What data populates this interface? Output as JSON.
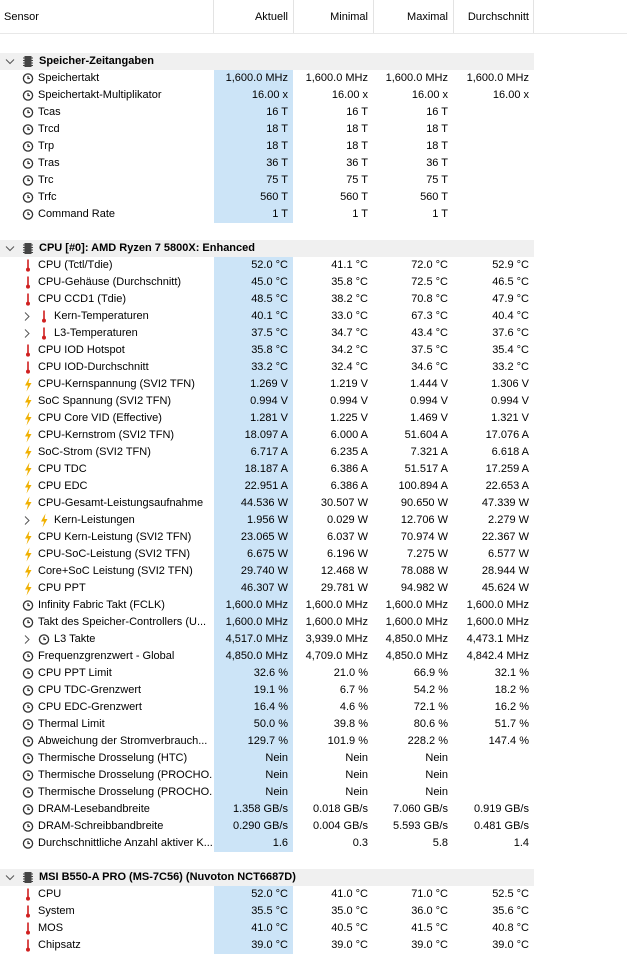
{
  "columns": {
    "sensor": "Sensor",
    "current": "Aktuell",
    "min": "Minimal",
    "max": "Maximal",
    "avg": "Durchschnitt"
  },
  "rows": [
    {
      "type": "spacer"
    },
    {
      "type": "section",
      "label": "Speicher-Zeitangaben",
      "icon": "memory-chip-icon",
      "expand": "chevron-down-icon"
    },
    {
      "type": "data",
      "icon": "clock-icon",
      "label": "Speichertakt",
      "cur": "1,600.0 MHz",
      "min": "1,600.0 MHz",
      "max": "1,600.0 MHz",
      "avg": "1,600.0 MHz"
    },
    {
      "type": "data",
      "icon": "clock-icon",
      "label": "Speichertakt-Multiplikator",
      "cur": "16.00 x",
      "min": "16.00 x",
      "max": "16.00 x",
      "avg": "16.00 x"
    },
    {
      "type": "data",
      "icon": "clock-icon",
      "label": "Tcas",
      "cur": "16 T",
      "min": "16 T",
      "max": "16 T",
      "avg": ""
    },
    {
      "type": "data",
      "icon": "clock-icon",
      "label": "Trcd",
      "cur": "18 T",
      "min": "18 T",
      "max": "18 T",
      "avg": ""
    },
    {
      "type": "data",
      "icon": "clock-icon",
      "label": "Trp",
      "cur": "18 T",
      "min": "18 T",
      "max": "18 T",
      "avg": ""
    },
    {
      "type": "data",
      "icon": "clock-icon",
      "label": "Tras",
      "cur": "36 T",
      "min": "36 T",
      "max": "36 T",
      "avg": ""
    },
    {
      "type": "data",
      "icon": "clock-icon",
      "label": "Trc",
      "cur": "75 T",
      "min": "75 T",
      "max": "75 T",
      "avg": ""
    },
    {
      "type": "data",
      "icon": "clock-icon",
      "label": "Trfc",
      "cur": "560 T",
      "min": "560 T",
      "max": "560 T",
      "avg": ""
    },
    {
      "type": "data",
      "icon": "clock-icon",
      "label": "Command Rate",
      "cur": "1 T",
      "min": "1 T",
      "max": "1 T",
      "avg": ""
    },
    {
      "type": "spacer"
    },
    {
      "type": "section",
      "label": "CPU [#0]: AMD Ryzen 7 5800X: Enhanced",
      "icon": "cpu-chip-icon",
      "expand": "chevron-down-icon"
    },
    {
      "type": "data",
      "icon": "thermometer-icon",
      "label": "CPU (Tctl/Tdie)",
      "cur": "52.0 °C",
      "min": "41.1 °C",
      "max": "72.0 °C",
      "avg": "52.9 °C"
    },
    {
      "type": "data",
      "icon": "thermometer-icon",
      "label": "CPU-Gehäuse (Durchschnitt)",
      "cur": "45.0 °C",
      "min": "35.8 °C",
      "max": "72.5 °C",
      "avg": "46.5 °C"
    },
    {
      "type": "data",
      "icon": "thermometer-icon",
      "label": "CPU CCD1 (Tdie)",
      "cur": "48.5 °C",
      "min": "38.2 °C",
      "max": "70.8 °C",
      "avg": "47.9 °C"
    },
    {
      "type": "data",
      "icon": "thermometer-icon",
      "expand": "chevron-right-icon",
      "indent": 1,
      "label": "Kern-Temperaturen",
      "cur": "40.1 °C",
      "min": "33.0 °C",
      "max": "67.3 °C",
      "avg": "40.4 °C"
    },
    {
      "type": "data",
      "icon": "thermometer-icon",
      "expand": "chevron-right-icon",
      "indent": 1,
      "label": "L3-Temperaturen",
      "cur": "37.5 °C",
      "min": "34.7 °C",
      "max": "43.4 °C",
      "avg": "37.6 °C"
    },
    {
      "type": "data",
      "icon": "thermometer-icon",
      "label": "CPU IOD Hotspot",
      "cur": "35.8 °C",
      "min": "34.2 °C",
      "max": "37.5 °C",
      "avg": "35.4 °C"
    },
    {
      "type": "data",
      "icon": "thermometer-icon",
      "label": "CPU IOD-Durchschnitt",
      "cur": "33.2 °C",
      "min": "32.4 °C",
      "max": "34.6 °C",
      "avg": "33.2 °C"
    },
    {
      "type": "data",
      "icon": "lightning-icon",
      "label": "CPU-Kernspannung (SVI2 TFN)",
      "cur": "1.269 V",
      "min": "1.219 V",
      "max": "1.444 V",
      "avg": "1.306 V"
    },
    {
      "type": "data",
      "icon": "lightning-icon",
      "label": "SoC Spannung (SVI2 TFN)",
      "cur": "0.994 V",
      "min": "0.994 V",
      "max": "0.994 V",
      "avg": "0.994 V"
    },
    {
      "type": "data",
      "icon": "lightning-icon",
      "label": "CPU Core VID (Effective)",
      "cur": "1.281 V",
      "min": "1.225 V",
      "max": "1.469 V",
      "avg": "1.321 V"
    },
    {
      "type": "data",
      "icon": "lightning-icon",
      "label": "CPU-Kernstrom (SVI2 TFN)",
      "cur": "18.097 A",
      "min": "6.000 A",
      "max": "51.604 A",
      "avg": "17.076 A"
    },
    {
      "type": "data",
      "icon": "lightning-icon",
      "label": "SoC-Strom (SVI2 TFN)",
      "cur": "6.717 A",
      "min": "6.235 A",
      "max": "7.321 A",
      "avg": "6.618 A"
    },
    {
      "type": "data",
      "icon": "lightning-icon",
      "label": "CPU TDC",
      "cur": "18.187 A",
      "min": "6.386 A",
      "max": "51.517 A",
      "avg": "17.259 A"
    },
    {
      "type": "data",
      "icon": "lightning-icon",
      "label": "CPU EDC",
      "cur": "22.951 A",
      "min": "6.386 A",
      "max": "100.894 A",
      "avg": "22.653 A"
    },
    {
      "type": "data",
      "icon": "lightning-icon",
      "label": "CPU-Gesamt-Leistungsaufnahme",
      "cur": "44.536 W",
      "min": "30.507 W",
      "max": "90.650 W",
      "avg": "47.339 W"
    },
    {
      "type": "data",
      "icon": "lightning-icon",
      "expand": "chevron-right-icon",
      "indent": 1,
      "label": "Kern-Leistungen",
      "cur": "1.956 W",
      "min": "0.029 W",
      "max": "12.706 W",
      "avg": "2.279 W"
    },
    {
      "type": "data",
      "icon": "lightning-icon",
      "label": "CPU Kern-Leistung (SVI2 TFN)",
      "cur": "23.065 W",
      "min": "6.037 W",
      "max": "70.974 W",
      "avg": "22.367 W"
    },
    {
      "type": "data",
      "icon": "lightning-icon",
      "label": "CPU-SoC-Leistung (SVI2 TFN)",
      "cur": "6.675 W",
      "min": "6.196 W",
      "max": "7.275 W",
      "avg": "6.577 W"
    },
    {
      "type": "data",
      "icon": "lightning-icon",
      "label": "Core+SoC Leistung (SVI2 TFN)",
      "cur": "29.740 W",
      "min": "12.468 W",
      "max": "78.088 W",
      "avg": "28.944 W"
    },
    {
      "type": "data",
      "icon": "lightning-icon",
      "label": "CPU PPT",
      "cur": "46.307 W",
      "min": "29.781 W",
      "max": "94.982 W",
      "avg": "45.624 W"
    },
    {
      "type": "data",
      "icon": "clock-icon",
      "label": "Infinity Fabric Takt (FCLK)",
      "cur": "1,600.0 MHz",
      "min": "1,600.0 MHz",
      "max": "1,600.0 MHz",
      "avg": "1,600.0 MHz"
    },
    {
      "type": "data",
      "icon": "clock-icon",
      "label": "Takt des Speicher-Controllers (U...",
      "cur": "1,600.0 MHz",
      "min": "1,600.0 MHz",
      "max": "1,600.0 MHz",
      "avg": "1,600.0 MHz"
    },
    {
      "type": "data",
      "icon": "clock-icon",
      "expand": "chevron-right-icon",
      "indent": 1,
      "label": "L3 Takte",
      "cur": "4,517.0 MHz",
      "min": "3,939.0 MHz",
      "max": "4,850.0 MHz",
      "avg": "4,473.1 MHz"
    },
    {
      "type": "data",
      "icon": "clock-icon",
      "label": "Frequenzgrenzwert - Global",
      "cur": "4,850.0 MHz",
      "min": "4,709.0 MHz",
      "max": "4,850.0 MHz",
      "avg": "4,842.4 MHz"
    },
    {
      "type": "data",
      "icon": "clock-icon",
      "label": "CPU PPT Limit",
      "cur": "32.6 %",
      "min": "21.0 %",
      "max": "66.9 %",
      "avg": "32.1 %"
    },
    {
      "type": "data",
      "icon": "clock-icon",
      "label": "CPU TDC-Grenzwert",
      "cur": "19.1 %",
      "min": "6.7 %",
      "max": "54.2 %",
      "avg": "18.2 %"
    },
    {
      "type": "data",
      "icon": "clock-icon",
      "label": "CPU EDC-Grenzwert",
      "cur": "16.4 %",
      "min": "4.6 %",
      "max": "72.1 %",
      "avg": "16.2 %"
    },
    {
      "type": "data",
      "icon": "clock-icon",
      "label": "Thermal Limit",
      "cur": "50.0 %",
      "min": "39.8 %",
      "max": "80.6 %",
      "avg": "51.7 %"
    },
    {
      "type": "data",
      "icon": "clock-icon",
      "label": "Abweichung der Stromverbrauch...",
      "cur": "129.7 %",
      "min": "101.9 %",
      "max": "228.2 %",
      "avg": "147.4 %"
    },
    {
      "type": "data",
      "icon": "clock-icon",
      "label": "Thermische Drosselung (HTC)",
      "cur": "Nein",
      "min": "Nein",
      "max": "Nein",
      "avg": ""
    },
    {
      "type": "data",
      "icon": "clock-icon",
      "label": "Thermische Drosselung (PROCHO...",
      "cur": "Nein",
      "min": "Nein",
      "max": "Nein",
      "avg": ""
    },
    {
      "type": "data",
      "icon": "clock-icon",
      "label": "Thermische Drosselung (PROCHO...",
      "cur": "Nein",
      "min": "Nein",
      "max": "Nein",
      "avg": ""
    },
    {
      "type": "data",
      "icon": "clock-icon",
      "label": "DRAM-Lesebandbreite",
      "cur": "1.358 GB/s",
      "min": "0.018 GB/s",
      "max": "7.060 GB/s",
      "avg": "0.919 GB/s"
    },
    {
      "type": "data",
      "icon": "clock-icon",
      "label": "DRAM-Schreibbandbreite",
      "cur": "0.290 GB/s",
      "min": "0.004 GB/s",
      "max": "5.593 GB/s",
      "avg": "0.481 GB/s"
    },
    {
      "type": "data",
      "icon": "clock-icon",
      "label": "Durchschnittliche Anzahl aktiver K...",
      "cur": "1.6",
      "min": "0.3",
      "max": "5.8",
      "avg": "1.4"
    },
    {
      "type": "spacer"
    },
    {
      "type": "section",
      "label": "MSI B550-A PRO (MS-7C56) (Nuvoton NCT6687D)",
      "icon": "motherboard-chip-icon",
      "expand": "chevron-down-icon"
    },
    {
      "type": "data",
      "icon": "thermometer-icon",
      "label": "CPU",
      "cur": "52.0 °C",
      "min": "41.0 °C",
      "max": "71.0 °C",
      "avg": "52.5 °C"
    },
    {
      "type": "data",
      "icon": "thermometer-icon",
      "label": "System",
      "cur": "35.5 °C",
      "min": "35.0 °C",
      "max": "36.0 °C",
      "avg": "35.6 °C"
    },
    {
      "type": "data",
      "icon": "thermometer-icon",
      "label": "MOS",
      "cur": "41.0 °C",
      "min": "40.5 °C",
      "max": "41.5 °C",
      "avg": "40.8 °C"
    },
    {
      "type": "data",
      "icon": "thermometer-icon",
      "label": "Chipsatz",
      "cur": "39.0 °C",
      "min": "39.0 °C",
      "max": "39.0 °C",
      "avg": "39.0 °C"
    }
  ],
  "colors": {
    "current_highlight": "#cce4f7",
    "section_band": "#f0f0f0",
    "thermometer": "#d02020",
    "lightning": "#f0b000",
    "clock": "#333333"
  }
}
